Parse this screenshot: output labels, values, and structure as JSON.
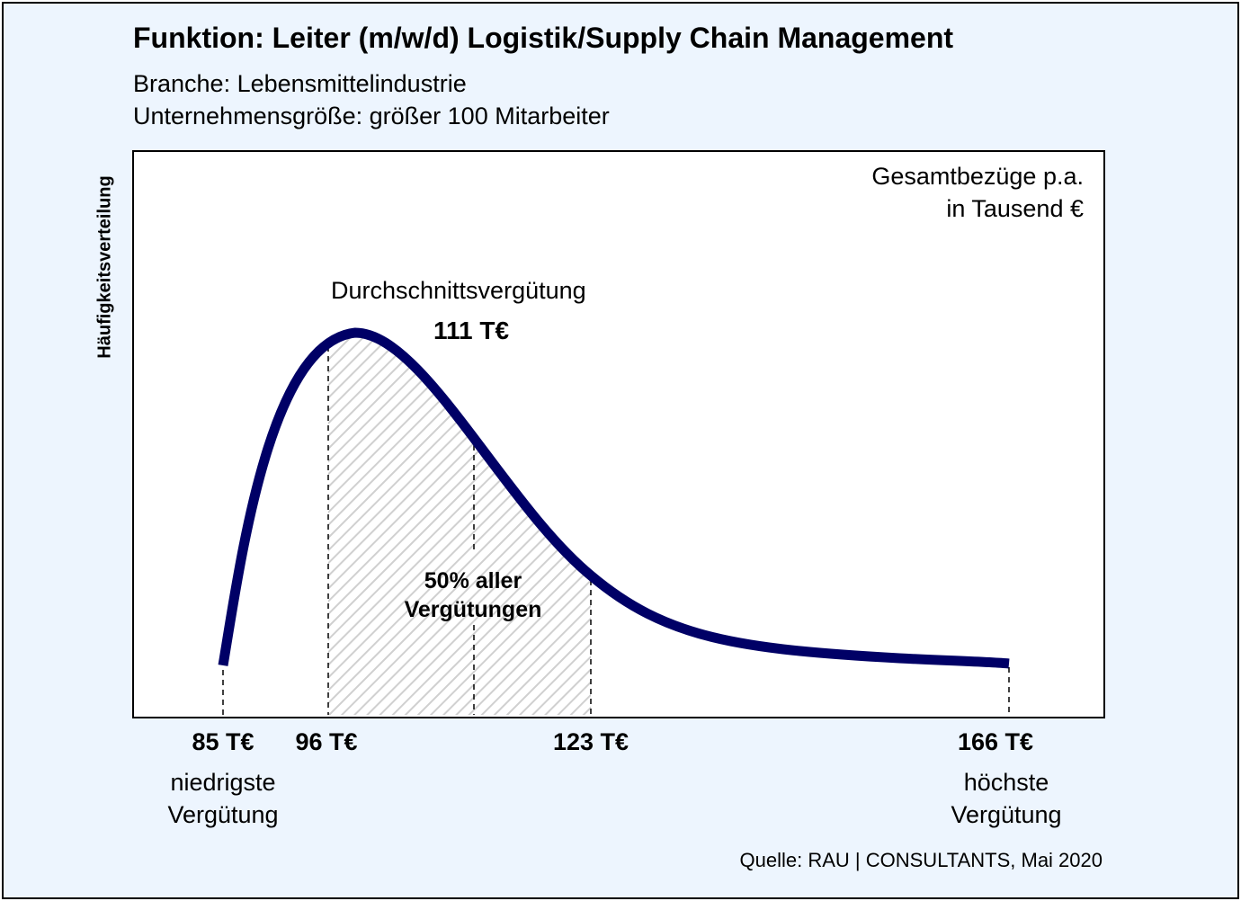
{
  "header": {
    "title": "Funktion: Leiter (m/w/d) Logistik/Supply Chain Management",
    "branch": "Branche: Lebensmittelindustrie",
    "company_size": "Unternehmensgröße: größer 100 Mitarbeiter"
  },
  "chart_data": {
    "type": "area",
    "ylabel": "Häufigkeitsverteilung",
    "unit_line1": "Gesamtbezüge p.a.",
    "unit_line2": "in Tausend €",
    "average": {
      "label": "Durchschnittsvergütung",
      "value_label": "111 T€",
      "value": 111
    },
    "interquartile": {
      "label_line1": "50% aller",
      "label_line2": "Vergütungen",
      "from": 96,
      "to": 123
    },
    "min": {
      "value": 85,
      "value_label": "85 T€",
      "desc_line1": "niedrigste",
      "desc_line2": "Vergütung"
    },
    "q1": {
      "value": 96,
      "value_label": "96 T€"
    },
    "q3": {
      "value": 123,
      "value_label": "123 T€"
    },
    "max": {
      "value": 166,
      "value_label": "166 T€",
      "desc_line1": "höchste",
      "desc_line2": "Vergütung"
    },
    "curve_color": "#000066",
    "grid": false
  },
  "source": "Quelle: RAU | CONSULTANTS, Mai 2020"
}
